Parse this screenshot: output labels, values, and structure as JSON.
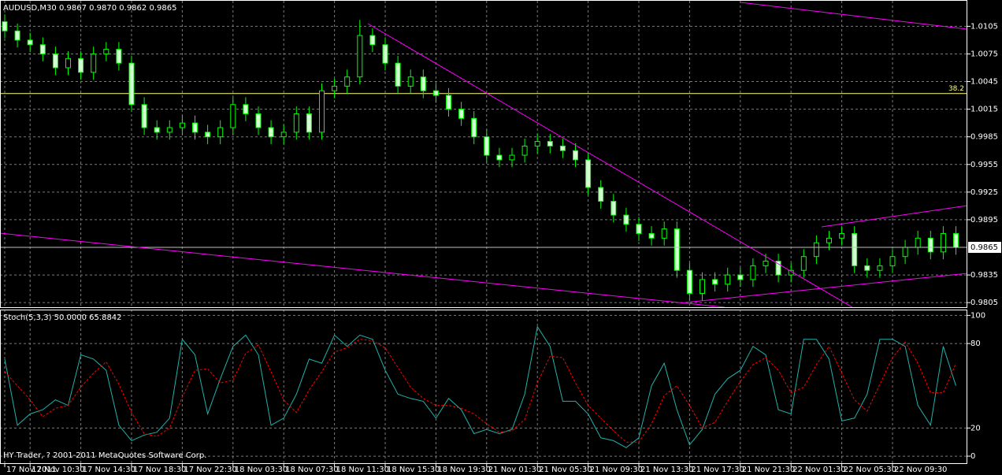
{
  "chart_data": [
    {
      "type": "candlestick",
      "title": "AUDUSD,M30 0.9867 0.9870 0.9862 0.9865",
      "categories": [
        "17 Nov 2011",
        null,
        "17 Nov 10:30",
        null,
        null,
        null,
        "17 Nov 14:30",
        null,
        null,
        null,
        "17 Nov 18:30",
        null,
        null,
        null,
        "17 Nov 22:30",
        null,
        null,
        null,
        "18 Nov 03:30",
        null,
        null,
        null,
        "18 Nov 07:30",
        null,
        null,
        null,
        "18 Nov 11:30",
        null,
        null,
        null,
        "18 Nov 15:30",
        null,
        null,
        null,
        "18 Nov 19:30",
        null,
        null,
        null,
        "21 Nov 01:30",
        null,
        null,
        null,
        "21 Nov 05:30",
        null,
        null,
        null,
        "21 Nov 09:30",
        null,
        null,
        null,
        "21 Nov 13:30",
        null,
        null,
        null,
        "21 Nov 17:30",
        null,
        null,
        null,
        "21 Nov 21:30",
        null,
        null,
        null,
        "22 Nov 01:30",
        null,
        null,
        null,
        "22 Nov 05:30",
        null,
        null,
        null,
        "22 Nov 09:30",
        null,
        null,
        null,
        null,
        null
      ],
      "open": [
        1.011,
        1.01,
        1.009,
        1.0085,
        1.0075,
        1.006,
        1.007,
        1.0055,
        1.0075,
        1.008,
        1.0065,
        1.002,
        0.9995,
        0.999,
        0.9995,
        1.0,
        0.999,
        0.9985,
        0.9995,
        1.002,
        1.001,
        0.9995,
        0.9985,
        0.999,
        1.001,
        0.999,
        1.0035,
        1.004,
        1.005,
        1.0095,
        1.0085,
        1.0065,
        1.004,
        1.005,
        1.0035,
        1.003,
        1.0015,
        1.0005,
        0.9985,
        0.9965,
        0.996,
        0.9965,
        0.9975,
        0.998,
        0.9975,
        0.997,
        0.996,
        0.993,
        0.9915,
        0.99,
        0.989,
        0.988,
        0.9875,
        0.9885,
        0.984,
        0.9815,
        0.983,
        0.9825,
        0.9835,
        0.983,
        0.9845,
        0.985,
        0.9835,
        0.984,
        0.9855,
        0.987,
        0.9875,
        0.988,
        0.9845,
        0.984,
        0.9845,
        0.9855,
        0.9865,
        0.9875,
        0.986,
        0.988
      ],
      "high": [
        1.0118,
        1.0108,
        1.0098,
        1.0093,
        1.0083,
        1.0078,
        1.0078,
        1.0083,
        1.0088,
        1.0088,
        1.0073,
        1.0028,
        1.0003,
        1.0003,
        1.0008,
        1.0008,
        0.9998,
        1.0003,
        1.0028,
        1.0028,
        1.0018,
        1.0003,
        0.9998,
        1.0018,
        1.0018,
        1.0043,
        1.0048,
        1.0058,
        1.0112,
        1.0103,
        1.0093,
        1.0073,
        1.0058,
        1.0058,
        1.0043,
        1.0038,
        1.0023,
        1.0013,
        0.9993,
        0.9973,
        0.9973,
        0.9983,
        0.9988,
        0.9988,
        0.9983,
        0.9978,
        0.9968,
        0.9938,
        0.9923,
        0.9908,
        0.9898,
        0.9888,
        0.9893,
        0.9893,
        0.9848,
        0.9838,
        0.9838,
        0.9843,
        0.9843,
        0.9853,
        0.9858,
        0.9858,
        0.9848,
        0.9863,
        0.9878,
        0.9883,
        0.9888,
        0.9888,
        0.9853,
        0.9853,
        0.9863,
        0.9873,
        0.9883,
        0.9883,
        0.9888,
        0.9888
      ],
      "low": [
        1.0092,
        1.0082,
        1.0077,
        1.0067,
        1.0052,
        1.0052,
        1.0047,
        1.0047,
        1.0067,
        1.0057,
        1.0012,
        0.9987,
        0.9982,
        0.9982,
        0.9987,
        0.9982,
        0.9977,
        0.9977,
        0.9987,
        1.0002,
        0.9987,
        0.9977,
        0.9977,
        0.9982,
        0.9982,
        0.9982,
        1.0027,
        1.0032,
        1.0042,
        1.0077,
        1.0057,
        1.0032,
        1.0032,
        1.0027,
        1.0022,
        1.0007,
        0.9997,
        0.9977,
        0.9957,
        0.9952,
        0.9952,
        0.9957,
        0.9967,
        0.9967,
        0.9962,
        0.9952,
        0.9922,
        0.9907,
        0.9892,
        0.9882,
        0.9872,
        0.9867,
        0.9867,
        0.9832,
        0.9807,
        0.9807,
        0.9817,
        0.9817,
        0.9822,
        0.9822,
        0.9837,
        0.9827,
        0.9827,
        0.9832,
        0.9847,
        0.9862,
        0.9867,
        0.9837,
        0.9832,
        0.9832,
        0.9837,
        0.9847,
        0.9857,
        0.9852,
        0.9852,
        0.9857
      ],
      "close": [
        1.01,
        1.009,
        1.0085,
        1.0075,
        1.006,
        1.007,
        1.0055,
        1.0075,
        1.008,
        1.0065,
        1.002,
        0.9995,
        0.999,
        0.9995,
        1.0,
        0.999,
        0.9985,
        0.9995,
        1.002,
        1.001,
        0.9995,
        0.9985,
        0.999,
        1.001,
        0.999,
        1.0035,
        1.004,
        1.005,
        1.0095,
        1.0085,
        1.0065,
        1.004,
        1.005,
        1.0035,
        1.003,
        1.0015,
        1.0005,
        0.9985,
        0.9965,
        0.996,
        0.9965,
        0.9975,
        0.998,
        0.9975,
        0.997,
        0.996,
        0.993,
        0.9915,
        0.99,
        0.989,
        0.988,
        0.9875,
        0.9885,
        0.984,
        0.9815,
        0.983,
        0.9825,
        0.9835,
        0.983,
        0.9845,
        0.985,
        0.9835,
        0.984,
        0.9855,
        0.987,
        0.9875,
        0.988,
        0.9845,
        0.984,
        0.9845,
        0.9855,
        0.9865,
        0.9875,
        0.986,
        0.988,
        0.9865
      ],
      "up_color": "#000000",
      "down_color": "#d0ffd0",
      "wick_color": "#00ff00",
      "ylim": [
        0.98,
        1.0131
      ],
      "yticks": [
        1.0105,
        1.0075,
        1.0045,
        1.0015,
        0.9985,
        0.9955,
        0.9925,
        0.9895,
        0.9835,
        0.9805
      ],
      "grid": true,
      "bid": 0.9865,
      "annotations": [
        {
          "text": "38.2",
          "y": 1.0032
        }
      ]
    },
    {
      "type": "line",
      "title": "Stoch(5,3,3) 50.0000 65.8842",
      "footer": "HY Trader, ? 2001-2011 MetaQuotes Software Corp.",
      "series": [
        {
          "color": "#20b2aa",
          "style": "solid",
          "values": [
            69,
            22,
            30,
            33,
            40,
            36,
            72,
            69,
            61,
            22,
            11,
            15,
            17,
            27,
            83,
            72,
            30,
            55,
            78,
            86,
            72,
            22,
            27,
            44,
            69,
            66,
            86,
            78,
            86,
            83,
            61,
            44,
            41,
            39,
            27,
            41,
            33,
            16,
            19,
            16,
            19,
            44,
            92,
            78,
            39,
            39,
            30,
            13,
            11,
            6,
            13,
            50,
            66,
            33,
            8,
            19,
            44,
            55,
            61,
            78,
            72,
            33,
            30,
            83,
            83,
            69,
            25,
            27,
            44,
            83,
            83,
            78,
            36,
            22,
            78,
            50
          ]
        },
        {
          "color": "#ff0000",
          "style": "dashed",
          "values": [
            60,
            50,
            40,
            28,
            34,
            36,
            49,
            59,
            67,
            51,
            31,
            16,
            14,
            20,
            42,
            61,
            62,
            52,
            54,
            73,
            79,
            60,
            40,
            31,
            47,
            60,
            74,
            77,
            83,
            82,
            77,
            63,
            49,
            41,
            36,
            36,
            34,
            30,
            23,
            17,
            18,
            26,
            52,
            71,
            70,
            52,
            36,
            27,
            18,
            10,
            10,
            23,
            43,
            50,
            36,
            20,
            24,
            39,
            53,
            65,
            70,
            61,
            45,
            49,
            65,
            78,
            59,
            40,
            32,
            51,
            70,
            81,
            66,
            45,
            45,
            65.8842
          ]
        }
      ],
      "ylim": [
        -5,
        103
      ],
      "yticks": [
        100,
        80,
        20,
        0
      ],
      "grid": true
    }
  ]
}
